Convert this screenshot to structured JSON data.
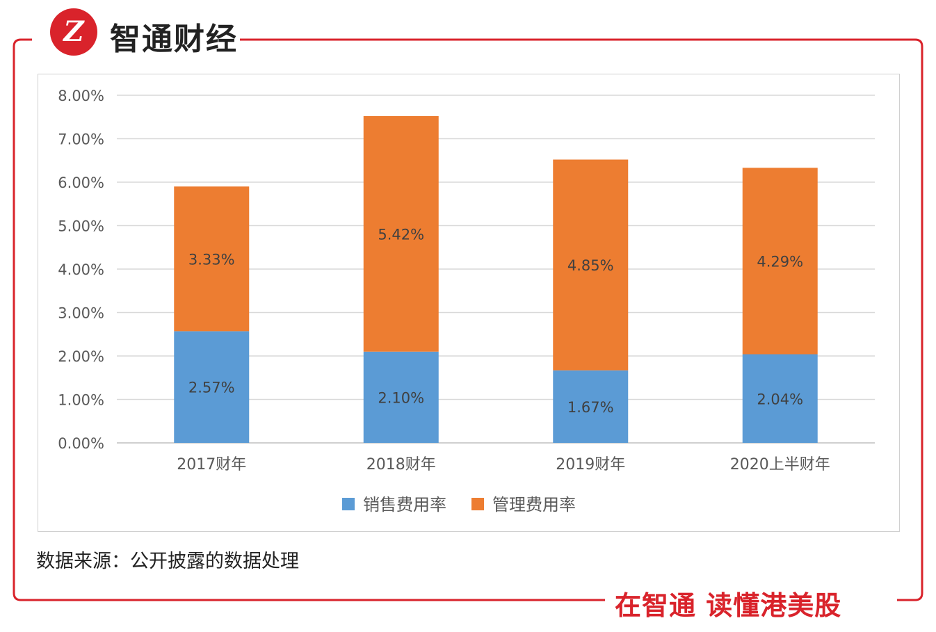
{
  "brand": {
    "name": "智通财经",
    "logo_glyph": "Z"
  },
  "source_note": "数据来源：公开披露的数据处理",
  "slogan": "在智通  读懂港美股",
  "colors": {
    "frame": "#d9232b",
    "series_sales": "#5b9bd5",
    "series_admin": "#ed7d31",
    "grid": "#d9d9d9"
  },
  "chart_data": {
    "type": "bar",
    "stacked": true,
    "categories": [
      "2017财年",
      "2018财年",
      "2019财年",
      "2020上半财年"
    ],
    "series": [
      {
        "name": "销售费用率",
        "values": [
          2.57,
          2.1,
          1.67,
          2.04
        ],
        "labels": [
          "2.57%",
          "2.10%",
          "1.67%",
          "2.04%"
        ],
        "color": "#5b9bd5"
      },
      {
        "name": "管理费用率",
        "values": [
          3.33,
          5.42,
          4.85,
          4.29
        ],
        "labels": [
          "3.33%",
          "5.42%",
          "4.85%",
          "4.29%"
        ],
        "color": "#ed7d31"
      }
    ],
    "y_ticks": [
      "0.00%",
      "1.00%",
      "2.00%",
      "3.00%",
      "4.00%",
      "5.00%",
      "6.00%",
      "7.00%",
      "8.00%"
    ],
    "ylim": [
      0,
      8
    ],
    "grid": true,
    "legend_position": "bottom",
    "title": "",
    "xlabel": "",
    "ylabel": ""
  }
}
